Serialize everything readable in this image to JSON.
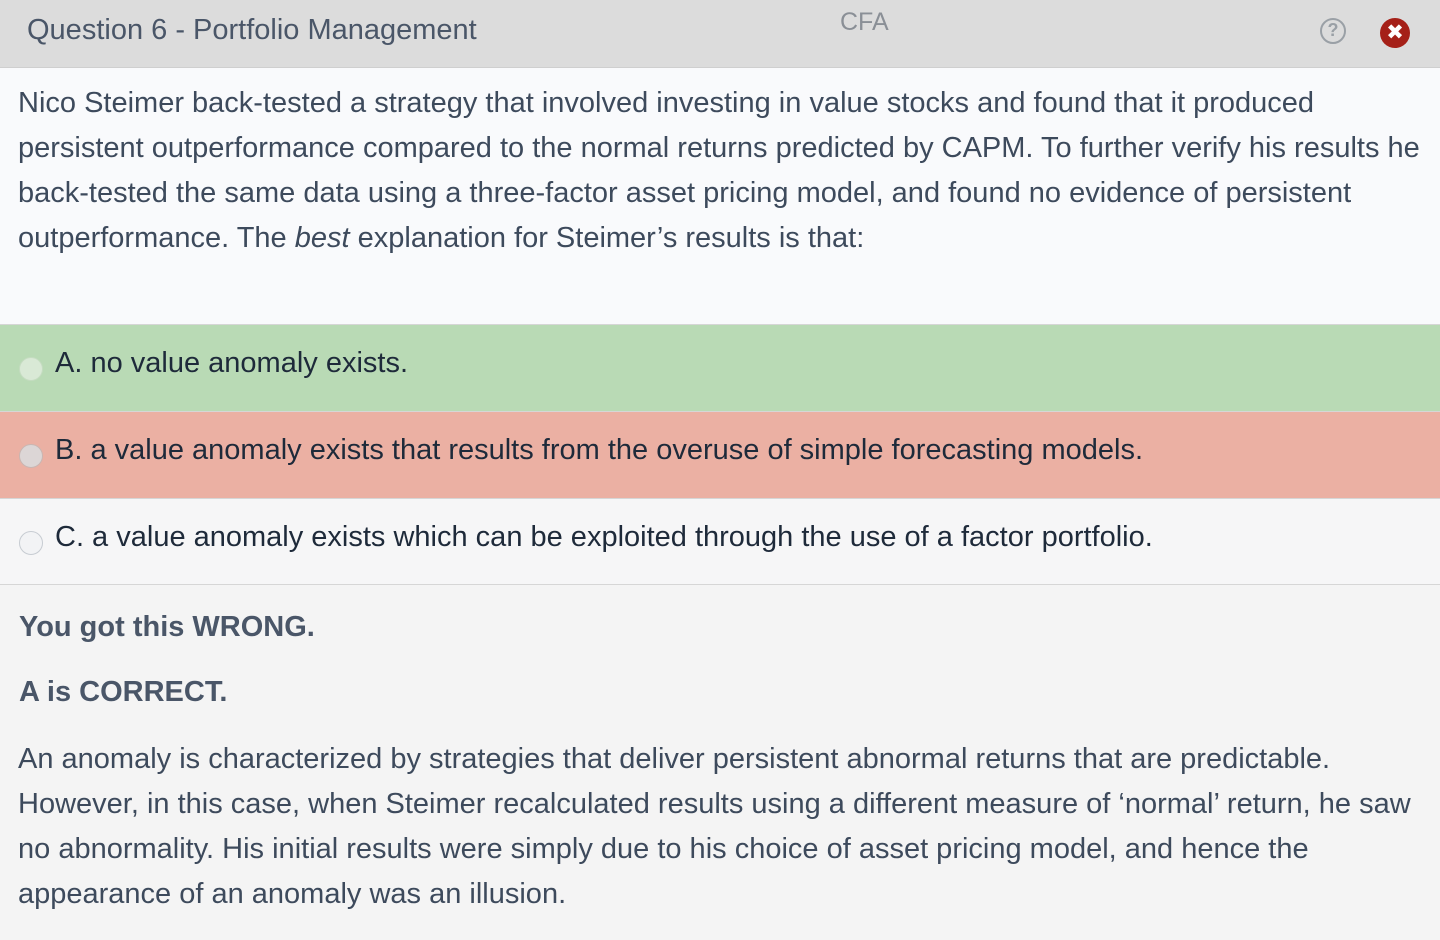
{
  "titlebar": {
    "title": "Question 6 - Portfolio Management",
    "brand": "CFA",
    "help_icon": "?",
    "close_icon": "✖"
  },
  "question": {
    "text_before": "Nico Steimer back-tested a strategy that involved investing in value stocks and found that it produced persistent outperformance compared to the normal returns predicted by CAPM.  To further verify his results he back-tested the same data using a three-factor asset pricing model, and found no evidence of persistent outperformance.  The ",
    "emphasis": "best",
    "text_after": " explanation for Steimer’s results is that:"
  },
  "options": [
    {
      "label": "A. no value anomaly exists.",
      "state": "correct",
      "color": "#b9dab5"
    },
    {
      "label": "B. a value anomaly exists that results from the overuse of simple forecasting models.",
      "state": "wrong",
      "color": "#ebb0a3"
    },
    {
      "label": "C. a value anomaly exists which can be exploited through the use of a factor portfolio.",
      "state": "neutral",
      "color": "#f6f6f7"
    }
  ],
  "feedback": {
    "result": "You got this WRONG.",
    "correct_answer": "A is CORRECT.",
    "explanation": "An anomaly is characterized by strategies that deliver persistent abnormal returns that are predictable.  However, in this case, when Steimer recalculated results using a different measure of ‘normal’ return, he saw no abnormality.  His initial results were simply due to his choice of asset pricing model, and hence the appearance of an anomaly was an illusion."
  },
  "colors": {
    "close_button": "#a52018",
    "titlebar": "#dcdcdc"
  }
}
